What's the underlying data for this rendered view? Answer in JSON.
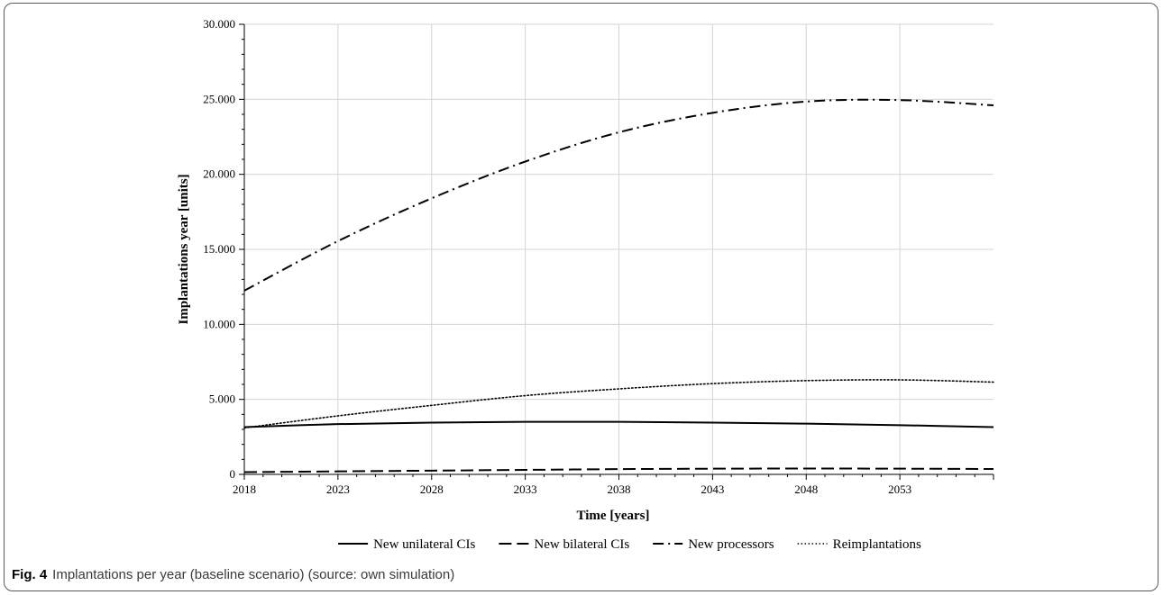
{
  "chart_data": {
    "type": "line",
    "xlabel": "Time [years]",
    "ylabel": "Implantations year [units]",
    "xlim": [
      2018,
      2058
    ],
    "ylim": [
      0,
      30000
    ],
    "x_ticks": [
      2018,
      2023,
      2028,
      2033,
      2038,
      2043,
      2048,
      2053
    ],
    "x_tick_labels": [
      "2018",
      "2023",
      "2028",
      "2033",
      "2038",
      "2043",
      "2048",
      "2053"
    ],
    "y_ticks": [
      0,
      5000,
      10000,
      15000,
      20000,
      25000,
      30000
    ],
    "y_tick_labels": [
      "0",
      "5.000",
      "10.000",
      "15.000",
      "20.000",
      "25.000",
      "30.000"
    ],
    "grid": true,
    "legend_position": "bottom",
    "x": [
      2018,
      2023,
      2028,
      2033,
      2038,
      2043,
      2048,
      2053,
      2058
    ],
    "series": [
      {
        "name": "New unilateral CIs",
        "style": "solid",
        "color": "#000000",
        "values": [
          3150,
          3350,
          3450,
          3500,
          3500,
          3450,
          3380,
          3280,
          3150
        ]
      },
      {
        "name": "New bilateral CIs",
        "style": "dashed",
        "color": "#000000",
        "values": [
          150,
          200,
          250,
          300,
          350,
          380,
          390,
          380,
          360
        ]
      },
      {
        "name": "New processors",
        "style": "dashdot",
        "color": "#000000",
        "values": [
          12250,
          15550,
          18400,
          20850,
          22800,
          24100,
          24850,
          24950,
          24600
        ]
      },
      {
        "name": "Reimplantations",
        "style": "dotted",
        "color": "#000000",
        "values": [
          3100,
          3900,
          4600,
          5250,
          5700,
          6050,
          6250,
          6300,
          6150
        ]
      }
    ]
  },
  "caption": {
    "label": "Fig. 4",
    "text": "Implantations per year (baseline scenario) (source: own simulation)"
  }
}
